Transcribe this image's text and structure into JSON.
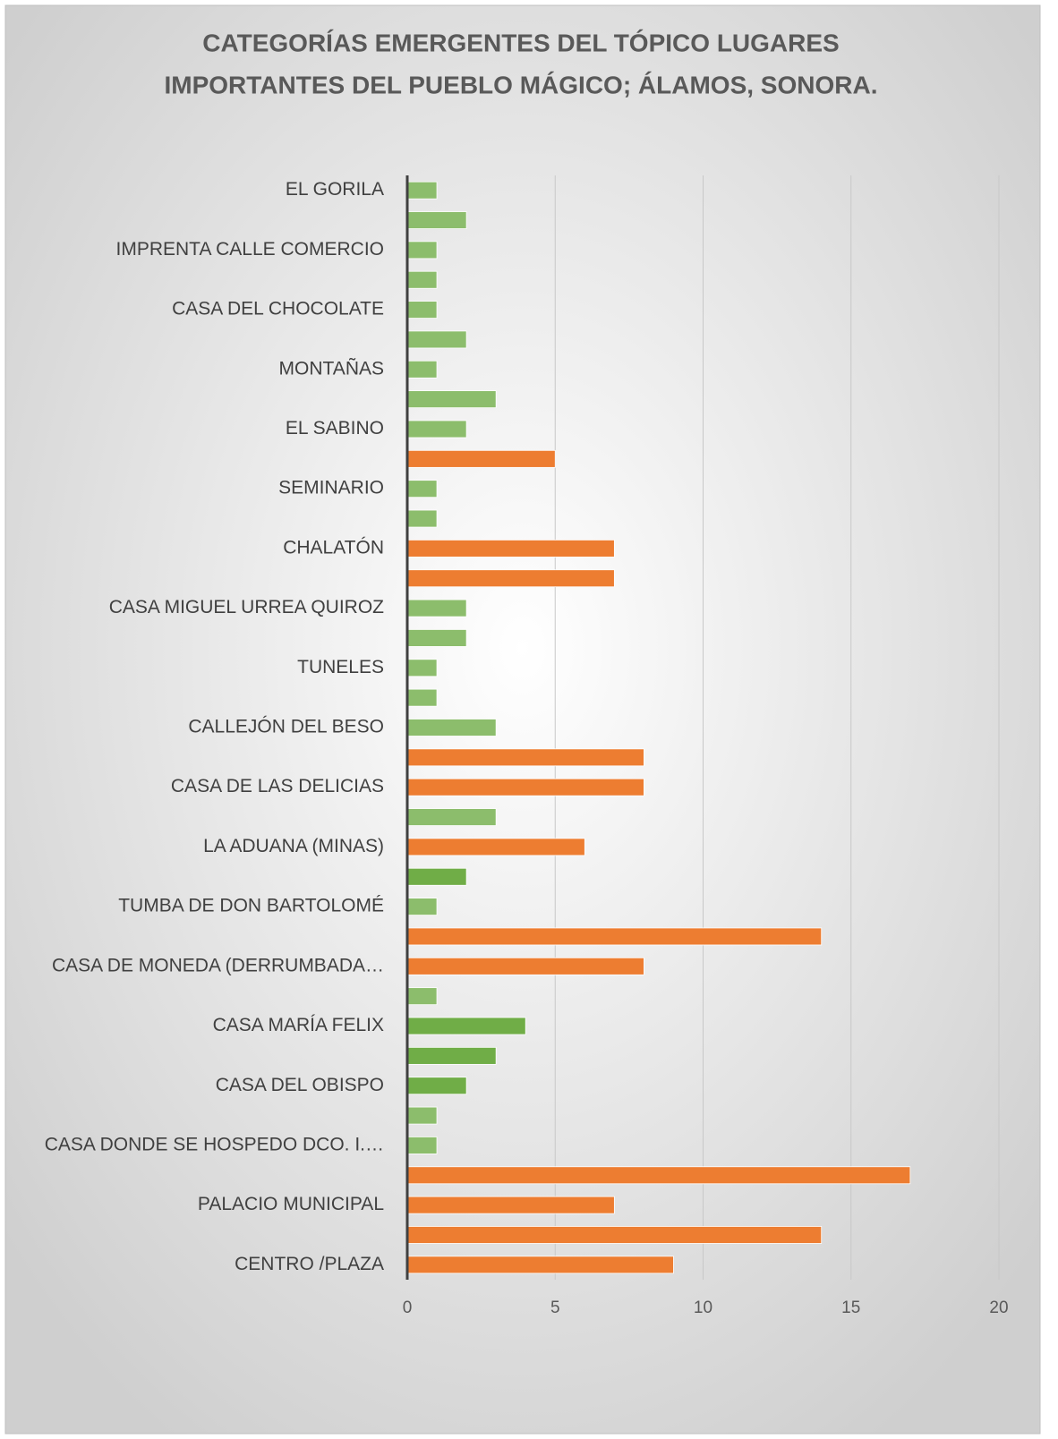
{
  "chart_data": {
    "type": "barh",
    "title": [
      "CATEGORÍAS EMERGENTES DEL TÓPICO LUGARES",
      "IMPORTANTES DEL PUEBLO MÁGICO; ÁLAMOS, SONORA."
    ],
    "categories": [
      "EL GORILA",
      null,
      "IMPRENTA CALLE COMERCIO",
      null,
      "CASA DEL CHOCOLATE",
      null,
      "MONTAÑAS",
      null,
      "EL SABINO",
      null,
      "SEMINARIO",
      null,
      "CHALATÓN",
      null,
      "CASA MIGUEL URREA QUIROZ",
      null,
      "TUNELES",
      null,
      "CALLEJÓN DEL BESO",
      null,
      "CASA DE LAS DELICIAS",
      null,
      "LA ADUANA (MINAS)",
      null,
      "TUMBA DE DON BARTOLOMÉ",
      null,
      "CASA DE MONEDA (DERRUMBADA…",
      null,
      "CASA MARÍA FELIX",
      null,
      "CASA DEL OBISPO",
      null,
      "CASA DONDE SE HOSPEDO DCO. I.…",
      null,
      "PALACIO MUNICIPAL",
      null,
      "CENTRO /PLAZA"
    ],
    "values": [
      1,
      2,
      1,
      1,
      1,
      2,
      1,
      3,
      2,
      5,
      1,
      1,
      7,
      7,
      2,
      2,
      1,
      1,
      3,
      8,
      8,
      3,
      6,
      2,
      1,
      14,
      8,
      1,
      4,
      3,
      2,
      1,
      1,
      17,
      7,
      14,
      9
    ],
    "colors": [
      "#8cbd6c",
      "#8cbd6c",
      "#8cbd6c",
      "#8cbd6c",
      "#8cbd6c",
      "#8cbd6c",
      "#8cbd6c",
      "#8cbd6c",
      "#8cbd6c",
      "#ed7d31",
      "#8cbd6c",
      "#8cbd6c",
      "#ed7d31",
      "#ed7d31",
      "#8cbd6c",
      "#8cbd6c",
      "#8cbd6c",
      "#8cbd6c",
      "#8cbd6c",
      "#ed7d31",
      "#ed7d31",
      "#8cbd6c",
      "#ed7d31",
      "#70ad47",
      "#8cbd6c",
      "#ed7d31",
      "#ed7d31",
      "#8cbd6c",
      "#70ad47",
      "#70ad47",
      "#70ad47",
      "#8cbd6c",
      "#8cbd6c",
      "#ed7d31",
      "#ed7d31",
      "#ed7d31",
      "#ed7d31"
    ],
    "xlim": [
      0,
      20
    ],
    "xticks": [
      0,
      5,
      10,
      15,
      20
    ],
    "grid": true
  }
}
